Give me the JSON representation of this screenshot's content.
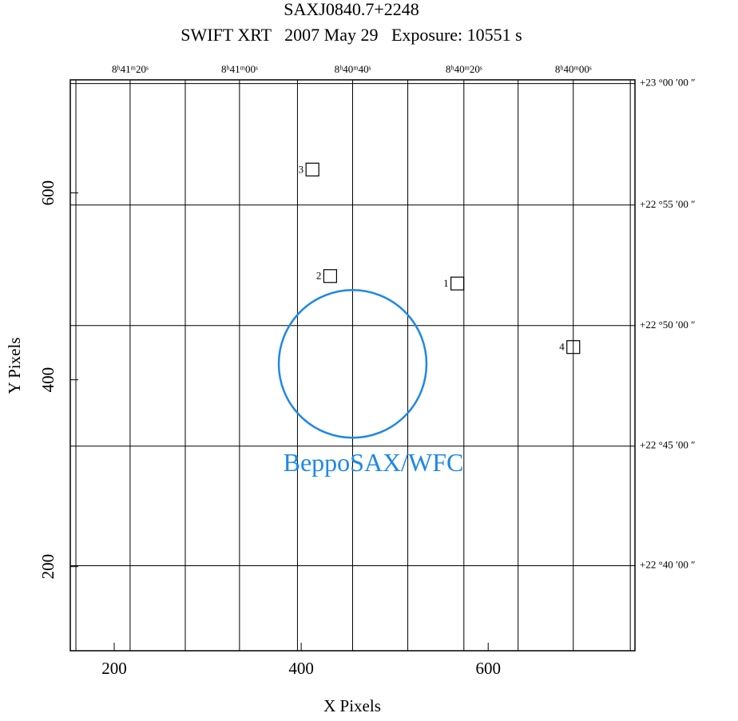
{
  "chart_data": {
    "type": "scatter",
    "title": "SAXJ0840.7+2248",
    "subtitle": "SWIFT XRT   2007 May 29   Exposure: 10551 s",
    "x_label": "X Pixels",
    "y_label": "Y Pixels",
    "xlim": [
      153,
      757
    ],
    "ylim": [
      110,
      721
    ],
    "xticks": [
      200,
      400,
      600
    ],
    "yticks": [
      200,
      400,
      600
    ],
    "x2ticks": [
      {
        "value": 217,
        "label": "8ʰ41ᵐ20ˢ"
      },
      {
        "value": 334,
        "label": "8ʰ41ᵐ00ˢ"
      },
      {
        "value": 455,
        "label": "8ʰ40ᵐ40ˢ"
      },
      {
        "value": 574,
        "label": "8ʰ40ᵐ20ˢ"
      },
      {
        "value": 691,
        "label": "8ʰ40ᵐ00ˢ"
      }
    ],
    "x2minor": [
      159,
      276,
      396,
      514,
      632,
      752
    ],
    "y2ticks": [
      {
        "value": 717,
        "label": "+23 °00 ′00 ″"
      },
      {
        "value": 587,
        "label": "+22 °55 ′00 ″"
      },
      {
        "value": 458,
        "label": "+22 °50 ′00 ″"
      },
      {
        "value": 329,
        "label": "+22 °45 ′00 ″"
      },
      {
        "value": 201,
        "label": "+22 °40 ′00 ″"
      }
    ],
    "grid": true,
    "sources": [
      {
        "label": "1",
        "x": 567,
        "y": 503
      },
      {
        "label": "2",
        "x": 431,
        "y": 511
      },
      {
        "label": "3",
        "x": 412,
        "y": 625
      },
      {
        "label": "4",
        "x": 691,
        "y": 435
      }
    ],
    "error_circle": {
      "text": "BeppoSAX/WFC",
      "x": 455,
      "y": 417,
      "r": 79,
      "color": "#1e88e5"
    }
  }
}
